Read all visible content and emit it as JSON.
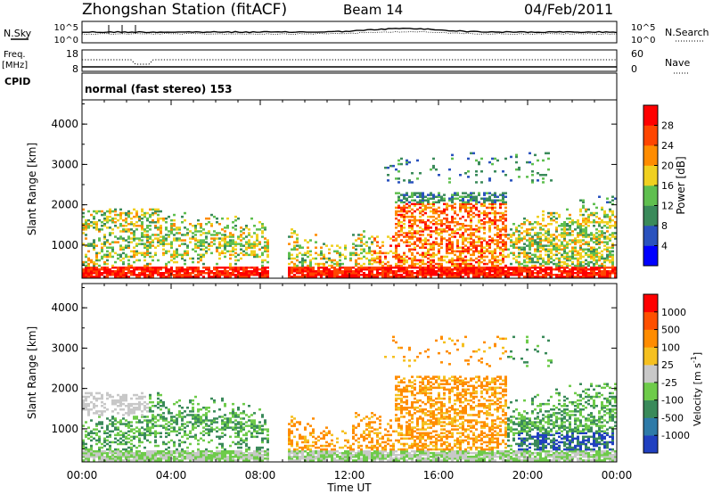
{
  "header": {
    "station": "Zhongshan Station (fitACF)",
    "beam": "Beam 14",
    "date": "04/Feb/2011"
  },
  "side_labels": {
    "nsky": "N.Sky",
    "freq": "Freq.",
    "freq_unit": "[MHz]",
    "cpid": "CPID",
    "nsearch": "N.Search",
    "nave": "Nave",
    "cpid_text": "normal (fast stereo) 153"
  },
  "small_axes": {
    "noise_left_ticks": [
      "10^5",
      "10^0"
    ],
    "noise_right_ticks": [
      "10^5",
      "10^0"
    ],
    "freq_left_ticks": [
      "18",
      "8"
    ],
    "freq_right_ticks": [
      "60",
      "0"
    ]
  },
  "chart_data": [
    {
      "type": "heatmap",
      "name": "power",
      "ylabel": "Slant Range [km]",
      "ylim": [
        180,
        4600
      ],
      "yticks": [
        "4000",
        "3000",
        "2000",
        "1000"
      ],
      "xticks": [
        "00:00",
        "04:00",
        "08:00",
        "12:00",
        "16:00",
        "20:00",
        "00:00"
      ],
      "colorbar": {
        "label": "Power [dB]",
        "ticks": [
          "28",
          "24",
          "20",
          "16",
          "12",
          "8",
          "4"
        ],
        "colors": [
          "#0000ff",
          "#2a52be",
          "#3a8a5a",
          "#5fbf4f",
          "#f0d020",
          "#ff8c00",
          "#ff4500",
          "#ff0000"
        ]
      }
    },
    {
      "type": "heatmap",
      "name": "velocity",
      "ylabel": "Slant Range [km]",
      "ylim": [
        180,
        4600
      ],
      "yticks": [
        "4000",
        "3000",
        "2000",
        "1000"
      ],
      "xticks": [
        "00:00",
        "04:00",
        "08:00",
        "12:00",
        "16:00",
        "20:00",
        "00:00"
      ],
      "xlabel": "Time UT",
      "colorbar": {
        "label": "Velocity [m s",
        "label_sup": "-1",
        "ticks": [
          "1000",
          "500",
          "100",
          "25",
          "-25",
          "-100",
          "-500",
          "-1000"
        ],
        "colors": [
          "#2040c0",
          "#2e7aa8",
          "#3a8a5a",
          "#6ecb4a",
          "#c8c8c8",
          "#f5c020",
          "#ff8c00",
          "#ff5000",
          "#ff0000"
        ]
      }
    }
  ]
}
